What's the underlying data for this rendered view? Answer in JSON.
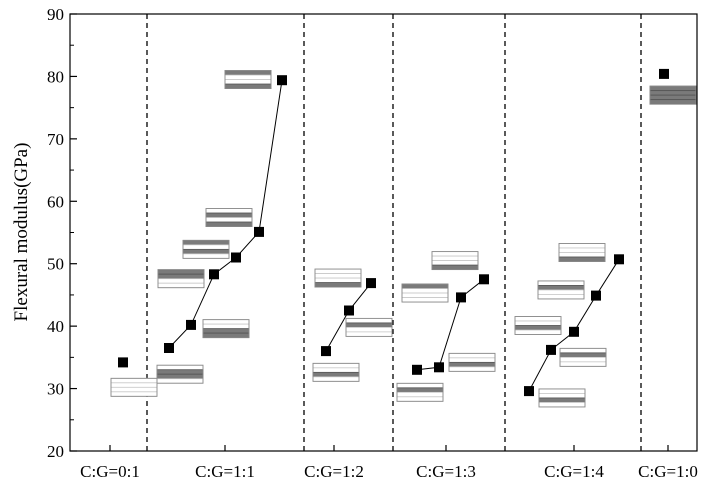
{
  "chart_data": {
    "type": "scatter",
    "title": "",
    "xlabel": "",
    "ylabel": "Flexural modulus(GPa)",
    "ylim": [
      20,
      90
    ],
    "yticks": [
      20,
      30,
      40,
      50,
      60,
      70,
      80,
      90
    ],
    "grid": false,
    "legend": "none",
    "colors": {
      "marker": "#000000",
      "line": "#000000",
      "divider": "#000000",
      "layer_dark": "#7a7a7a",
      "layer_light": "#c8c8c8"
    },
    "groups": [
      {
        "label": "C:G=0:1",
        "points": [
          34.2
        ],
        "connected": false,
        "layups": [
          {
            "level": 30.2,
            "dark_layers": []
          }
        ]
      },
      {
        "label": "C:G=1:1",
        "points": [
          36.5,
          40.2,
          48.3,
          51.0,
          55.1,
          79.4
        ],
        "connected": true,
        "layups": [
          {
            "level": 32.3,
            "dark_layers": [
              1,
              2
            ]
          },
          {
            "level": 39.6,
            "dark_layers": [
              2,
              3
            ]
          },
          {
            "level": 47.6,
            "dark_layers": [
              0,
              1
            ]
          },
          {
            "level": 52.3,
            "dark_layers": [
              0,
              2
            ]
          },
          {
            "level": 57.4,
            "dark_layers": [
              1,
              3
            ]
          },
          {
            "level": 79.5,
            "dark_layers": [
              0,
              3
            ]
          }
        ]
      },
      {
        "label": "C:G=1:2",
        "points": [
          36.0,
          42.5,
          46.9
        ],
        "connected": true,
        "layups": [
          {
            "level": 32.6,
            "dark_layers": [
              2
            ]
          },
          {
            "level": 39.8,
            "dark_layers": [
              1
            ]
          },
          {
            "level": 47.7,
            "dark_layers": [
              3
            ]
          }
        ]
      },
      {
        "label": "C:G=1:3",
        "points": [
          33.0,
          33.4,
          44.6,
          47.5
        ],
        "connected": true,
        "layups": [
          {
            "level": 29.4,
            "dark_layers": [
              1
            ]
          },
          {
            "level": 34.2,
            "dark_layers": [
              2
            ]
          },
          {
            "level": 45.3,
            "dark_layers": [
              0
            ]
          },
          {
            "level": 50.5,
            "dark_layers": [
              3
            ]
          }
        ]
      },
      {
        "label": "C:G=1:4",
        "points": [
          29.6,
          36.2,
          39.1,
          44.9,
          50.7
        ],
        "connected": true,
        "layups": [
          {
            "level": 28.5,
            "dark_layers": [
              2
            ]
          },
          {
            "level": 35.0,
            "dark_layers": [
              1
            ]
          },
          {
            "level": 40.1,
            "dark_layers": [
              2
            ]
          },
          {
            "level": 45.8,
            "dark_layers": [
              1
            ]
          },
          {
            "level": 51.8,
            "dark_layers": [
              3
            ]
          }
        ]
      },
      {
        "label": "C:G=1:0",
        "points": [
          80.4
        ],
        "connected": false,
        "layups": [
          {
            "level": 77.0,
            "dark_layers": [
              0,
              1,
              2,
              3
            ]
          }
        ]
      }
    ]
  }
}
